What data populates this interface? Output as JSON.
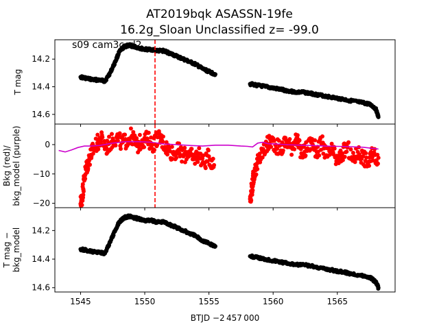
{
  "figure": {
    "title_line1": "AT2019bqk  ASASSN-19fe",
    "title_line2": "16.2g_Sloan Unclassified z= -99.0",
    "annotation": "s09 cam3ccd2",
    "xlabel": "BTJD −2 457 000"
  },
  "chart_data": [
    {
      "type": "scatter",
      "panel": "top",
      "ylabel": "T mag",
      "y_inverted": true,
      "xlim": [
        1543.0,
        1569.5
      ],
      "ylim": [
        14.06,
        14.67
      ],
      "x_ticks": [
        1545,
        1550,
        1555,
        1560,
        1565
      ],
      "y_ticks": [
        14.2,
        14.4,
        14.6
      ],
      "y_tick_labels": [
        "14.2",
        "14.4",
        "14.6"
      ],
      "marker_color": "#000000",
      "vline": {
        "x": 1550.8,
        "color": "#ff0000",
        "style": "dashed"
      },
      "series": [
        {
          "x": [
            1545.0,
            1545.5,
            1546.0,
            1546.5,
            1546.9,
            1547.3,
            1547.7,
            1548.0,
            1548.4,
            1548.8,
            1549.2,
            1549.6,
            1550.0,
            1550.5,
            1551.0,
            1551.5,
            1552.0,
            1552.5,
            1553.0,
            1553.5,
            1554.0,
            1554.5,
            1555.0,
            1555.5,
            1558.2,
            1558.8,
            1559.4,
            1560.0,
            1560.6,
            1561.2,
            1561.8,
            1562.4,
            1563.0,
            1563.6,
            1564.2,
            1564.8,
            1565.4,
            1566.0,
            1566.6,
            1567.2,
            1567.6,
            1568.0,
            1568.2
          ],
          "y": [
            14.33,
            14.34,
            14.35,
            14.35,
            14.36,
            14.3,
            14.22,
            14.15,
            14.11,
            14.1,
            14.11,
            14.12,
            14.13,
            14.13,
            14.14,
            14.14,
            14.16,
            14.18,
            14.2,
            14.22,
            14.24,
            14.27,
            14.29,
            14.31,
            14.38,
            14.39,
            14.4,
            14.41,
            14.42,
            14.43,
            14.44,
            14.44,
            14.45,
            14.46,
            14.47,
            14.48,
            14.49,
            14.5,
            14.51,
            14.52,
            14.53,
            14.56,
            14.62
          ]
        }
      ]
    },
    {
      "type": "scatter",
      "panel": "middle",
      "ylabel": "Bkg (red)/\nbkg_model (purple)",
      "xlim": [
        1543.0,
        1569.5
      ],
      "ylim": [
        -21.5,
        7.0
      ],
      "y_ticks": [
        0,
        -10,
        -20
      ],
      "y_tick_labels": [
        "0",
        "−10",
        "−20"
      ],
      "vline": {
        "x": 1550.8,
        "color": "#ff0000",
        "style": "dashed"
      },
      "series": [
        {
          "kind": "points",
          "color": "#ff0000",
          "x": [
            1545.0,
            1545.1,
            1545.2,
            1545.3,
            1545.45,
            1545.6,
            1545.8,
            1546.0,
            1546.3,
            1546.6,
            1547.0,
            1547.4,
            1547.8,
            1548.2,
            1548.6,
            1549.0,
            1549.4,
            1549.8,
            1550.2,
            1550.6,
            1551.0,
            1551.4,
            1551.8,
            1552.2,
            1552.6,
            1553.0,
            1553.4,
            1553.8,
            1554.2,
            1554.6,
            1555.0,
            1555.4,
            1558.2,
            1558.3,
            1558.4,
            1558.5,
            1558.7,
            1558.9,
            1559.2,
            1559.5,
            1559.8,
            1560.2,
            1560.6,
            1561.0,
            1561.4,
            1561.8,
            1562.2,
            1562.6,
            1563.0,
            1563.4,
            1563.8,
            1564.2,
            1564.6,
            1565.0,
            1565.4,
            1565.8,
            1566.2,
            1566.6,
            1567.0,
            1567.4,
            1567.8,
            1568.2
          ],
          "y": [
            -20.2,
            -18.5,
            -15.0,
            -11.0,
            -8.0,
            -6.0,
            -3.5,
            -1.5,
            0.5,
            2.0,
            -1.0,
            1.0,
            2.5,
            0.5,
            1.5,
            3.0,
            -0.5,
            1.5,
            2.0,
            0.0,
            2.5,
            1.0,
            -1.5,
            -3.0,
            -2.0,
            -4.0,
            -2.5,
            -5.0,
            -3.0,
            -6.5,
            -4.0,
            -7.0,
            -18.5,
            -16.0,
            -13.5,
            -10.0,
            -7.5,
            -5.0,
            -2.5,
            -0.5,
            1.5,
            0.0,
            -2.0,
            1.5,
            -1.0,
            2.0,
            -3.0,
            -1.5,
            1.0,
            -2.5,
            0.5,
            -4.0,
            -2.0,
            -6.0,
            -3.0,
            -1.0,
            -5.5,
            -2.5,
            -4.0,
            -6.5,
            -3.0,
            -4.5
          ]
        },
        {
          "kind": "line",
          "color": "#cc00cc",
          "x": [
            1543.3,
            1543.8,
            1544.3,
            1544.8,
            1545.3,
            1545.8,
            1546.5,
            1547.5,
            1548.5,
            1549.5,
            1550.5,
            1551.5,
            1552.5,
            1553.5,
            1554.5,
            1555.5,
            1556.5,
            1557.5,
            1558.0,
            1558.4,
            1558.8,
            1559.2,
            1559.6,
            1560.2,
            1561.0,
            1562.0,
            1563.0,
            1564.0,
            1565.0,
            1566.0,
            1567.0,
            1568.2
          ],
          "y": [
            -2.0,
            -2.5,
            -1.8,
            -1.0,
            -0.5,
            -0.5,
            -0.3,
            0.5,
            1.0,
            1.0,
            0.8,
            0.2,
            0.0,
            -0.3,
            -0.5,
            -0.2,
            -0.2,
            -0.5,
            -0.6,
            -0.8,
            0.5,
            0.8,
            0.3,
            0.2,
            0.0,
            -0.2,
            -0.3,
            -0.5,
            -0.6,
            -0.7,
            -0.9,
            -1.5
          ]
        }
      ]
    },
    {
      "type": "scatter",
      "panel": "bottom",
      "ylabel": "T mag −\nbkg_model",
      "y_inverted": true,
      "xlim": [
        1543.0,
        1569.5
      ],
      "ylim": [
        14.04,
        14.63
      ],
      "y_ticks": [
        14.2,
        14.4,
        14.6
      ],
      "y_tick_labels": [
        "14.2",
        "14.4",
        "14.6"
      ],
      "marker_color": "#000000",
      "series": [
        {
          "x": [
            1545.0,
            1545.5,
            1546.0,
            1546.5,
            1546.9,
            1547.3,
            1547.7,
            1548.0,
            1548.4,
            1548.8,
            1549.2,
            1549.6,
            1550.0,
            1550.5,
            1551.0,
            1551.5,
            1552.0,
            1552.5,
            1553.0,
            1553.5,
            1554.0,
            1554.5,
            1555.0,
            1555.5,
            1558.2,
            1558.8,
            1559.4,
            1560.0,
            1560.6,
            1561.2,
            1561.8,
            1562.4,
            1563.0,
            1563.6,
            1564.2,
            1564.8,
            1565.4,
            1566.0,
            1566.6,
            1567.2,
            1567.6,
            1568.0,
            1568.2
          ],
          "y": [
            14.33,
            14.34,
            14.35,
            14.35,
            14.36,
            14.28,
            14.2,
            14.14,
            14.11,
            14.1,
            14.11,
            14.12,
            14.13,
            14.13,
            14.14,
            14.14,
            14.16,
            14.18,
            14.2,
            14.22,
            14.24,
            14.27,
            14.29,
            14.31,
            14.38,
            14.39,
            14.4,
            14.41,
            14.42,
            14.43,
            14.44,
            14.44,
            14.45,
            14.46,
            14.47,
            14.48,
            14.49,
            14.5,
            14.51,
            14.52,
            14.53,
            14.56,
            14.6
          ]
        }
      ]
    }
  ]
}
